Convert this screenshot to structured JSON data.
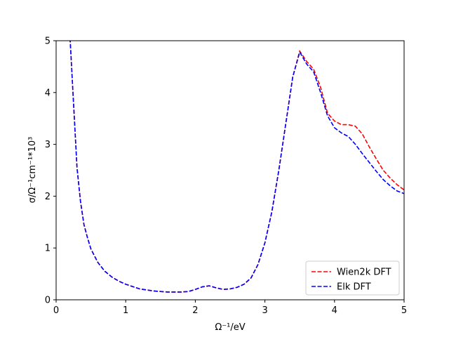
{
  "chart_data": {
    "type": "line",
    "title": "",
    "xlabel": "Ω⁻¹/eV",
    "ylabel": "σ/Ω⁻¹cm⁻¹*10³",
    "xlim": [
      0,
      5
    ],
    "ylim": [
      0,
      5
    ],
    "xticks": [
      0,
      1,
      2,
      3,
      4,
      5
    ],
    "yticks": [
      0,
      1,
      2,
      3,
      4,
      5
    ],
    "grid": false,
    "legend_position": "bottom-right",
    "series": [
      {
        "name": "Wien2k DFT",
        "color": "#ff0000",
        "dash": "dashed",
        "x": [
          0.2,
          0.25,
          0.3,
          0.35,
          0.4,
          0.45,
          0.5,
          0.6,
          0.7,
          0.8,
          0.9,
          1.0,
          1.2,
          1.4,
          1.6,
          1.8,
          1.9,
          2.0,
          2.1,
          2.2,
          2.3,
          2.4,
          2.5,
          2.6,
          2.7,
          2.8,
          2.9,
          3.0,
          3.1,
          3.2,
          3.3,
          3.4,
          3.5,
          3.6,
          3.7,
          3.8,
          3.9,
          4.0,
          4.1,
          4.2,
          4.3,
          4.4,
          4.5,
          4.6,
          4.7,
          4.8,
          4.9,
          5.0
        ],
        "y": [
          5.05,
          3.8,
          2.55,
          1.9,
          1.45,
          1.2,
          0.98,
          0.72,
          0.55,
          0.44,
          0.36,
          0.3,
          0.21,
          0.17,
          0.15,
          0.15,
          0.16,
          0.2,
          0.25,
          0.27,
          0.23,
          0.2,
          0.21,
          0.24,
          0.3,
          0.42,
          0.68,
          1.1,
          1.7,
          2.5,
          3.4,
          4.3,
          4.8,
          4.6,
          4.45,
          4.1,
          3.6,
          3.45,
          3.38,
          3.38,
          3.35,
          3.2,
          2.95,
          2.72,
          2.5,
          2.35,
          2.22,
          2.12
        ]
      },
      {
        "name": "Elk DFT",
        "color": "#0000ff",
        "dash": "dashed",
        "x": [
          0.2,
          0.25,
          0.3,
          0.35,
          0.4,
          0.45,
          0.5,
          0.6,
          0.7,
          0.8,
          0.9,
          1.0,
          1.2,
          1.4,
          1.6,
          1.8,
          1.9,
          2.0,
          2.1,
          2.2,
          2.3,
          2.4,
          2.5,
          2.6,
          2.7,
          2.8,
          2.9,
          3.0,
          3.1,
          3.2,
          3.3,
          3.4,
          3.5,
          3.6,
          3.7,
          3.8,
          3.9,
          4.0,
          4.1,
          4.2,
          4.3,
          4.4,
          4.5,
          4.6,
          4.7,
          4.8,
          4.9,
          5.0
        ],
        "y": [
          5.05,
          3.8,
          2.55,
          1.9,
          1.45,
          1.2,
          0.98,
          0.72,
          0.55,
          0.44,
          0.36,
          0.3,
          0.21,
          0.17,
          0.15,
          0.15,
          0.16,
          0.2,
          0.25,
          0.27,
          0.23,
          0.2,
          0.21,
          0.24,
          0.3,
          0.42,
          0.68,
          1.1,
          1.7,
          2.5,
          3.4,
          4.3,
          4.78,
          4.55,
          4.4,
          4.0,
          3.55,
          3.32,
          3.22,
          3.15,
          3.0,
          2.82,
          2.65,
          2.48,
          2.32,
          2.2,
          2.1,
          2.05
        ]
      }
    ]
  }
}
